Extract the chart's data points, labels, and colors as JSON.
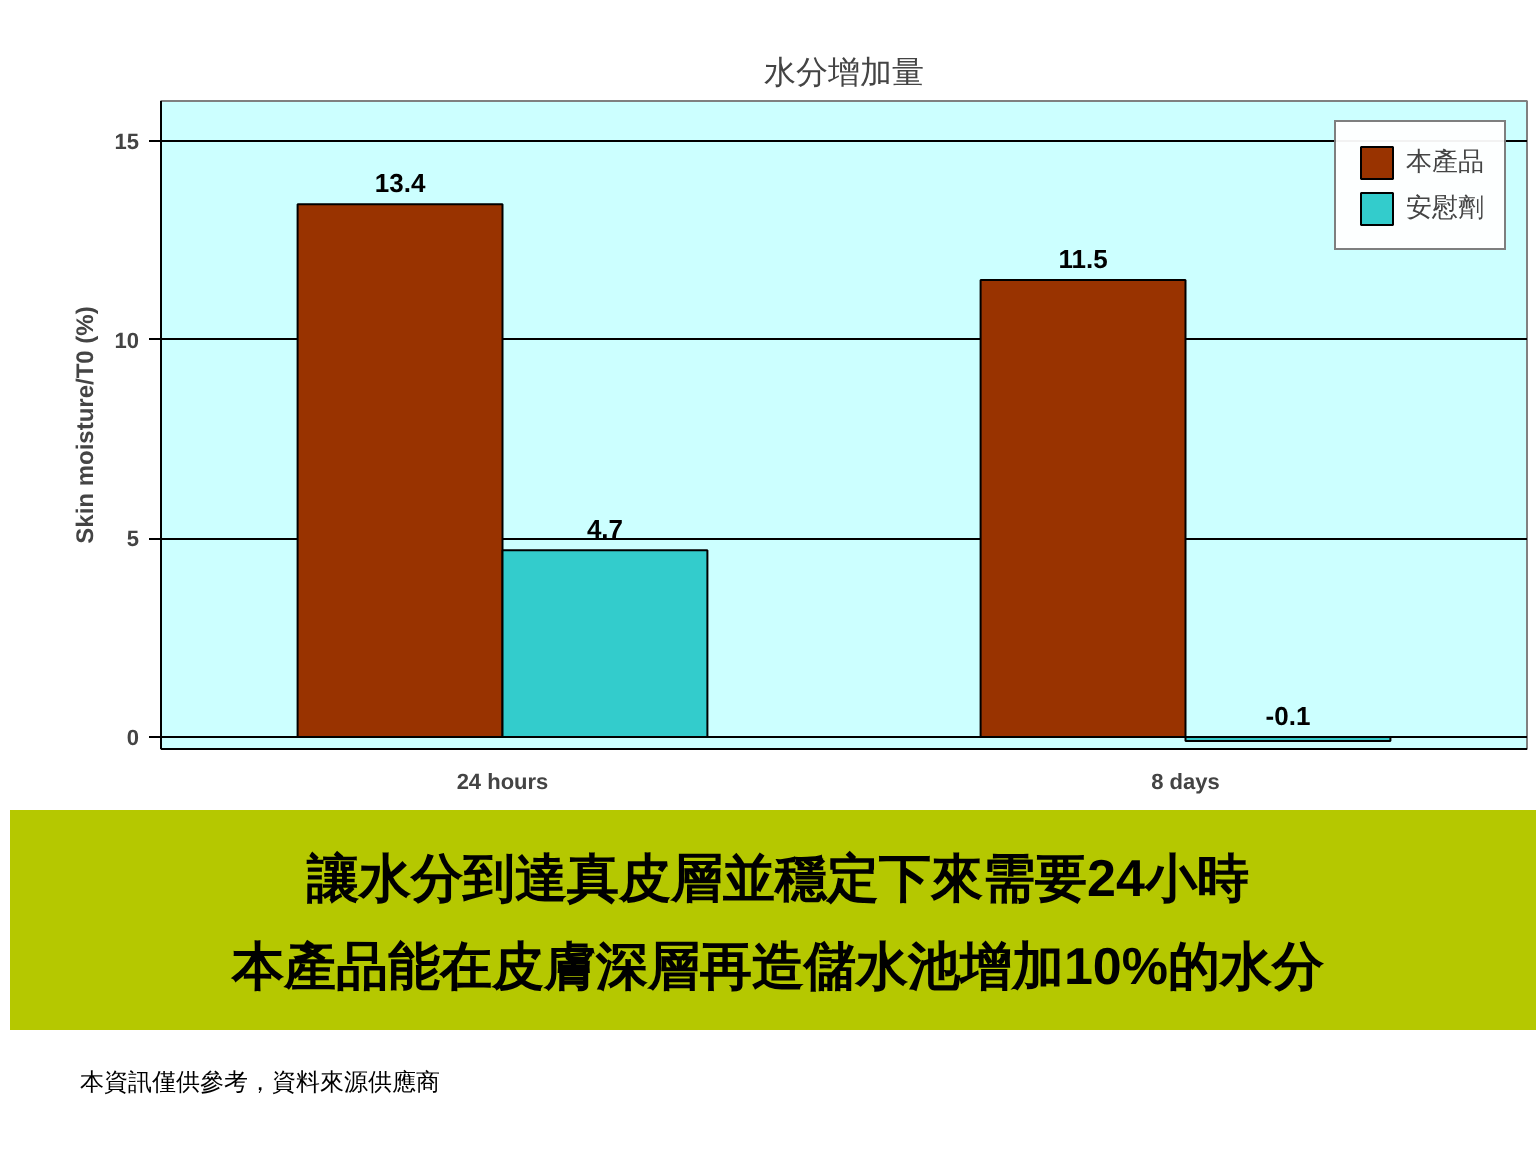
{
  "chart_data": {
    "type": "bar",
    "title": "水分增加量",
    "ylabel": "Skin moisture/T0 (%)",
    "categories": [
      "24 hours",
      "8 days"
    ],
    "series": [
      {
        "name": "本產品",
        "color": "#993300",
        "values": [
          13.4,
          11.5
        ]
      },
      {
        "name": "安慰劑",
        "color": "#33cccc",
        "values": [
          4.7,
          -0.1
        ]
      }
    ],
    "ylim": [
      -0.3,
      16
    ],
    "yticks": [
      0,
      5,
      10,
      15
    ],
    "grid": "y",
    "legend": "top right",
    "data_labels": true,
    "annotations": [
      "讓水分到達真皮層並穩定下來需要24小時",
      "本產品能在皮膚深層再造儲水池增加10%的水分",
      "本資訊僅供參考，資料來源供應商"
    ]
  }
}
